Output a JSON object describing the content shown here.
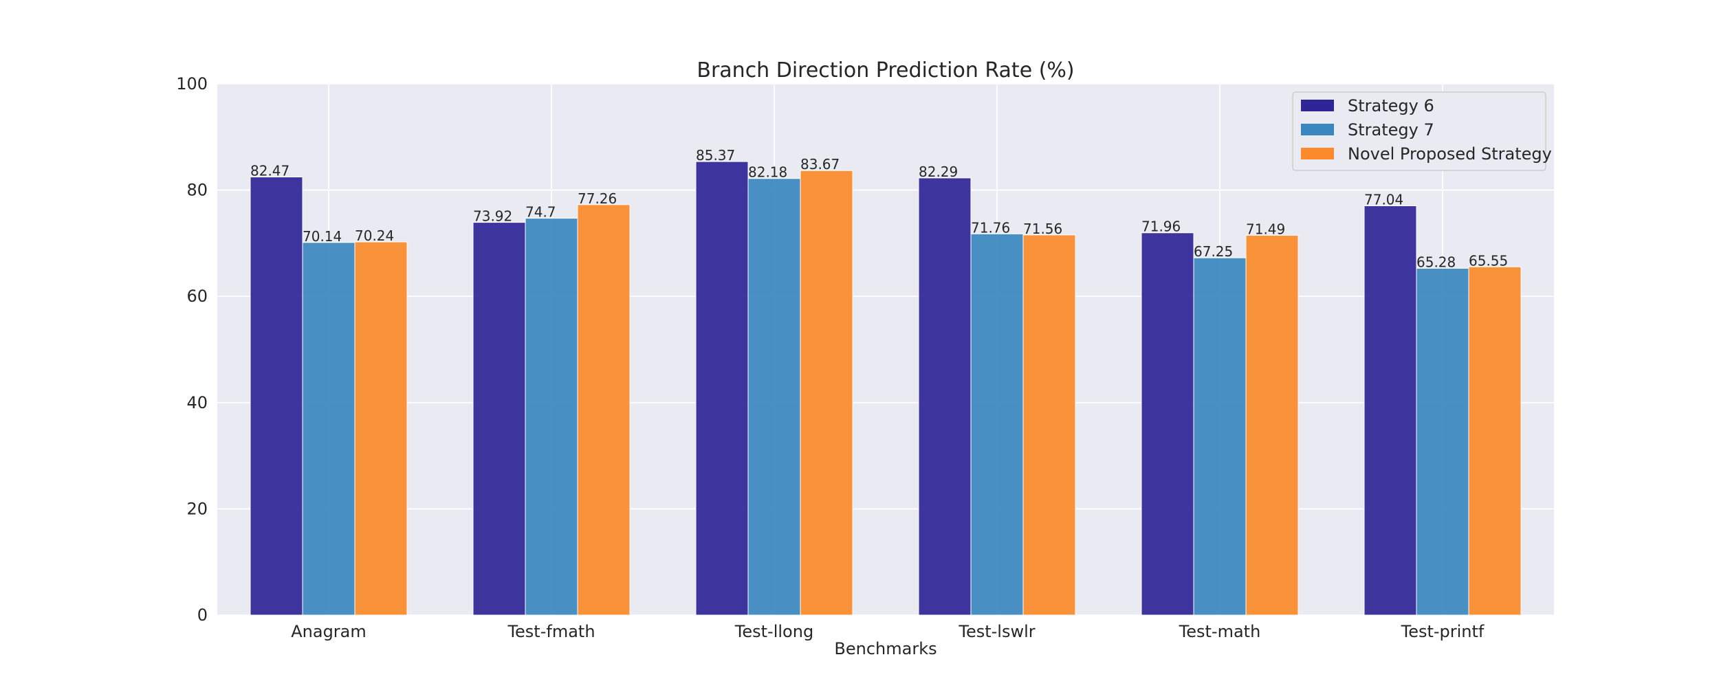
{
  "chart_data": {
    "type": "bar",
    "title": "Branch Direction Prediction Rate (%)",
    "xlabel": "Benchmarks",
    "ylabel": "",
    "ylim": [
      0,
      100
    ],
    "yticks": [
      0,
      20,
      40,
      60,
      80,
      100
    ],
    "grid": true,
    "legend_position": "top-right",
    "categories": [
      "Anagram",
      "Test-fmath",
      "Test-llong",
      "Test-lswlr",
      "Test-math",
      "Test-printf"
    ],
    "series": [
      {
        "name": "Strategy 6",
        "color": "#2e2596",
        "values": [
          82.47,
          73.92,
          85.37,
          82.29,
          71.96,
          77.04
        ],
        "labels": [
          "82.47",
          "73.92",
          "85.37",
          "82.29",
          "71.96",
          "77.04"
        ]
      },
      {
        "name": "Strategy 7",
        "color": "#3a87c0",
        "values": [
          70.14,
          74.7,
          82.18,
          71.76,
          67.25,
          65.28
        ],
        "labels": [
          "70.14",
          "74.7",
          "82.18",
          "71.76",
          "67.25",
          "65.28"
        ]
      },
      {
        "name": "Novel Proposed Strategy",
        "color": "#fb8a2a",
        "values": [
          70.24,
          77.26,
          83.67,
          71.56,
          71.49,
          65.55
        ],
        "labels": [
          "70.24",
          "77.26",
          "83.67",
          "71.56",
          "71.49",
          "65.55"
        ]
      }
    ],
    "colors": {
      "plot_background": "#eaeaf2",
      "grid": "#ffffff"
    }
  }
}
